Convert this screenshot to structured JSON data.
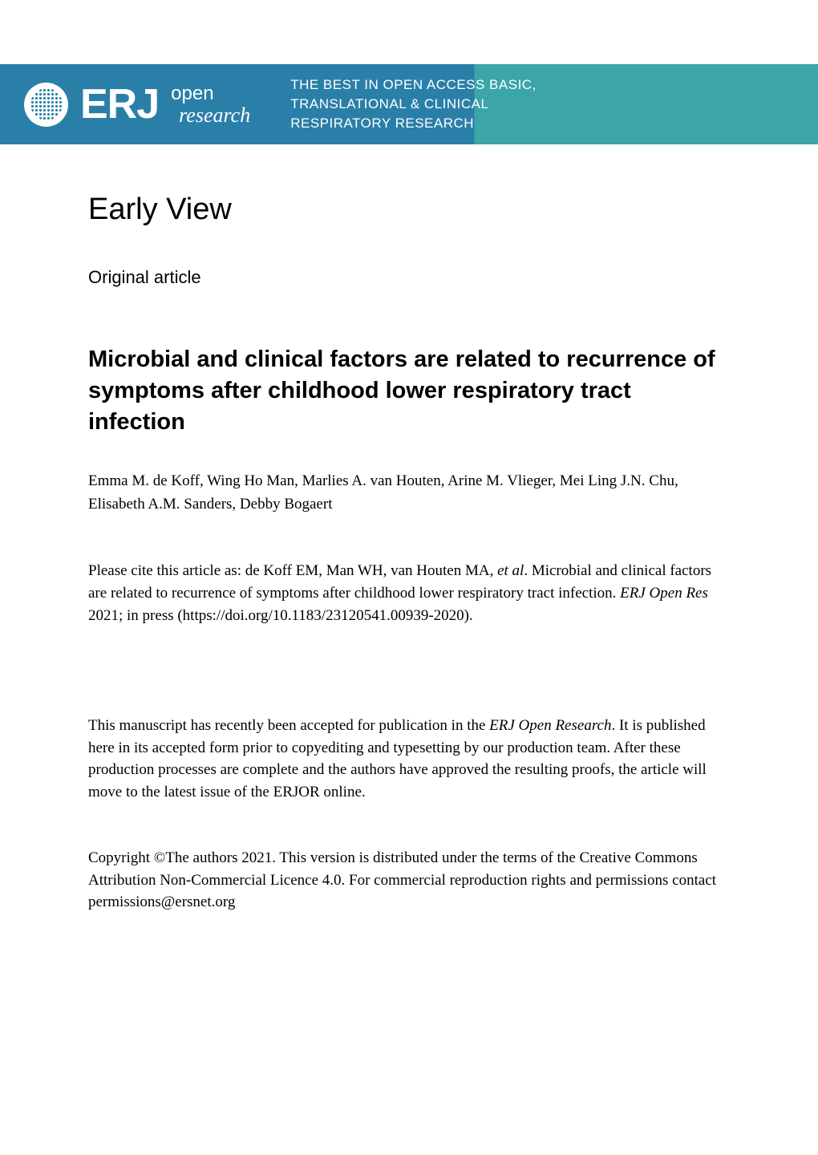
{
  "banner": {
    "brand": "ERJ",
    "tagline_top": "open",
    "tagline_bottom": "research",
    "desc_line1": "THE BEST IN OPEN ACCESS BASIC,",
    "desc_line2": "TRANSLATIONAL & CLINICAL",
    "desc_line3": "RESPIRATORY RESEARCH",
    "bg_left": "#2a7fa8",
    "bg_right": "#3ba5a8",
    "text_color": "#ffffff"
  },
  "header": {
    "early_view": "Early View",
    "article_type": "Original article"
  },
  "article": {
    "title": "Microbial and clinical factors are related to recurrence of symptoms after childhood lower respiratory tract infection",
    "authors": "Emma M. de Koff, Wing Ho Man, Marlies A. van Houten, Arine M. Vlieger, Mei Ling J.N. Chu, Elisabeth A.M. Sanders, Debby Bogaert"
  },
  "citation": {
    "prefix": "Please cite this article as: de Koff EM, Man WH, van Houten MA, ",
    "etal": "et al",
    "middle": ". Microbial and clinical factors are related to recurrence of symptoms after childhood lower respiratory tract infection. ",
    "journal": "ERJ Open Res",
    "suffix": " 2021; in press (https://doi.org/10.1183/23120541.00939-2020)."
  },
  "disclaimer": {
    "prefix": "This manuscript has recently been accepted for publication in the ",
    "journal": "ERJ Open Research",
    "suffix": ". It is published here in its accepted form prior to copyediting and typesetting by our production team. After these production processes are complete and the authors have approved the resulting proofs, the article will move to the latest issue of the ERJOR online."
  },
  "copyright": {
    "text": "Copyright ©The authors 2021. This version is distributed under the terms of the Creative Commons Attribution Non-Commercial Licence 4.0. For commercial reproduction rights and permissions contact permissions@ersnet.org"
  },
  "typography": {
    "body_font": "Times New Roman",
    "heading_font": "Arial",
    "title_fontsize": 29,
    "body_fontsize": 19,
    "early_view_fontsize": 38,
    "article_type_fontsize": 22
  },
  "colors": {
    "background": "#ffffff",
    "text": "#000000"
  }
}
